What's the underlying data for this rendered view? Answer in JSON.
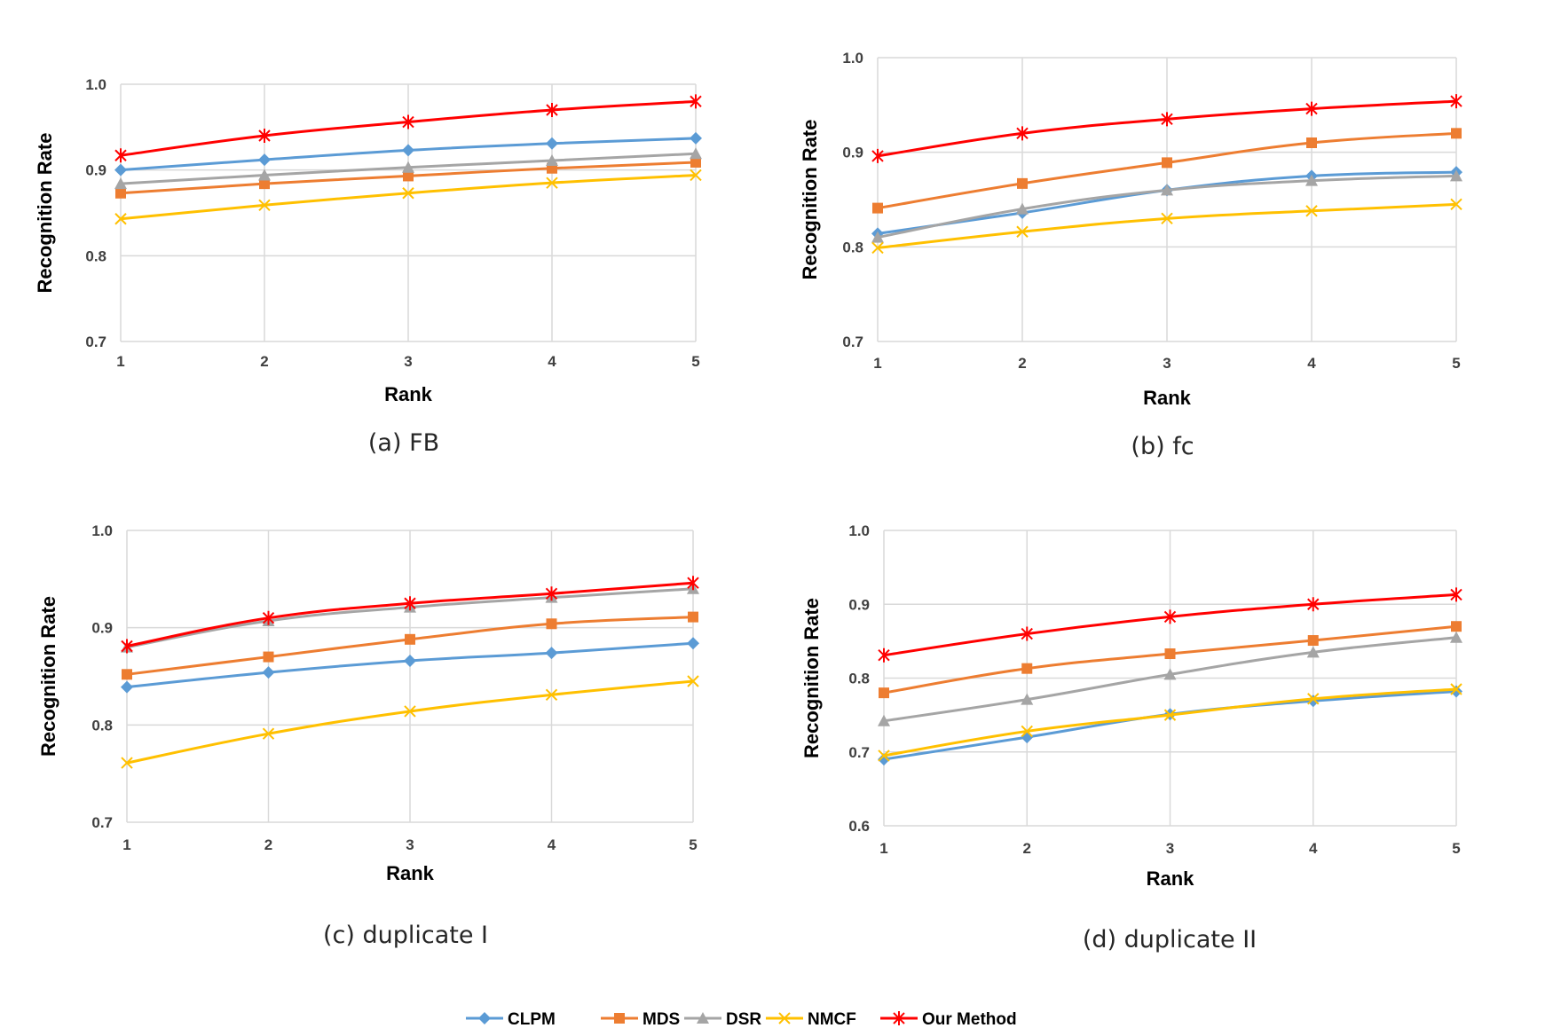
{
  "legend": [
    {
      "name": "CLPM",
      "color": "#5b9bd5",
      "marker": "diamond"
    },
    {
      "name": "MDS",
      "color": "#ed7d31",
      "marker": "square"
    },
    {
      "name": "DSR",
      "color": "#a5a5a5",
      "marker": "triangle"
    },
    {
      "name": "NMCF",
      "color": "#ffc000",
      "marker": "x"
    },
    {
      "name": "Our Method",
      "color": "#ff0000",
      "marker": "star"
    }
  ],
  "chart_data": [
    {
      "type": "line",
      "caption": "(a) FB",
      "xlabel": "Rank",
      "ylabel": "Recognition Rate",
      "x": [
        1,
        2,
        3,
        4,
        5
      ],
      "ylim": [
        0.7,
        1.0
      ],
      "yticks": [
        "0.7",
        "0.8",
        "0.9",
        "1.0"
      ],
      "grid": true,
      "series": [
        {
          "name": "CLPM",
          "values": [
            0.9,
            0.912,
            0.923,
            0.931,
            0.937
          ]
        },
        {
          "name": "MDS",
          "values": [
            0.873,
            0.884,
            0.893,
            0.902,
            0.909
          ]
        },
        {
          "name": "DSR",
          "values": [
            0.884,
            0.894,
            0.903,
            0.911,
            0.919
          ]
        },
        {
          "name": "NMCF",
          "values": [
            0.843,
            0.859,
            0.873,
            0.885,
            0.894
          ]
        },
        {
          "name": "Our Method",
          "values": [
            0.917,
            0.94,
            0.956,
            0.97,
            0.98
          ]
        }
      ]
    },
    {
      "type": "line",
      "caption": "(b) fc",
      "xlabel": "Rank",
      "ylabel": "Recognition Rate",
      "x": [
        1,
        2,
        3,
        4,
        5
      ],
      "ylim": [
        0.7,
        1.0
      ],
      "yticks": [
        "0.7",
        "0.8",
        "0.9",
        "1.0"
      ],
      "grid": true,
      "series": [
        {
          "name": "CLPM",
          "values": [
            0.814,
            0.836,
            0.86,
            0.875,
            0.879
          ]
        },
        {
          "name": "MDS",
          "values": [
            0.841,
            0.867,
            0.889,
            0.91,
            0.92
          ]
        },
        {
          "name": "DSR",
          "values": [
            0.81,
            0.84,
            0.86,
            0.87,
            0.875
          ]
        },
        {
          "name": "NMCF",
          "values": [
            0.799,
            0.816,
            0.83,
            0.838,
            0.845
          ]
        },
        {
          "name": "Our Method",
          "values": [
            0.896,
            0.92,
            0.935,
            0.946,
            0.954
          ]
        }
      ]
    },
    {
      "type": "line",
      "caption": "(c) duplicate I",
      "xlabel": "Rank",
      "ylabel": "Recognition Rate",
      "x": [
        1,
        2,
        3,
        4,
        5
      ],
      "ylim": [
        0.7,
        1.0
      ],
      "yticks": [
        "0.7",
        "0.8",
        "0.9",
        "1.0"
      ],
      "grid": true,
      "series": [
        {
          "name": "CLPM",
          "values": [
            0.839,
            0.854,
            0.866,
            0.874,
            0.884
          ]
        },
        {
          "name": "MDS",
          "values": [
            0.852,
            0.87,
            0.888,
            0.904,
            0.911
          ]
        },
        {
          "name": "DSR",
          "values": [
            0.88,
            0.907,
            0.921,
            0.931,
            0.94
          ]
        },
        {
          "name": "NMCF",
          "values": [
            0.761,
            0.791,
            0.814,
            0.831,
            0.845
          ]
        },
        {
          "name": "Our Method",
          "values": [
            0.881,
            0.91,
            0.925,
            0.935,
            0.946
          ]
        }
      ]
    },
    {
      "type": "line",
      "caption": "(d) duplicate II",
      "xlabel": "Rank",
      "ylabel": "Recognition Rate",
      "x": [
        1,
        2,
        3,
        4,
        5
      ],
      "ylim": [
        0.6,
        1.0
      ],
      "yticks": [
        "0.6",
        "0.7",
        "0.8",
        "0.9",
        "1.0"
      ],
      "grid": true,
      "series": [
        {
          "name": "CLPM",
          "values": [
            0.69,
            0.72,
            0.751,
            0.769,
            0.782
          ]
        },
        {
          "name": "MDS",
          "values": [
            0.78,
            0.813,
            0.833,
            0.851,
            0.87
          ]
        },
        {
          "name": "DSR",
          "values": [
            0.742,
            0.771,
            0.805,
            0.835,
            0.855
          ]
        },
        {
          "name": "NMCF",
          "values": [
            0.695,
            0.728,
            0.75,
            0.772,
            0.785
          ]
        },
        {
          "name": "Our Method",
          "values": [
            0.831,
            0.86,
            0.883,
            0.9,
            0.913
          ]
        }
      ]
    }
  ]
}
